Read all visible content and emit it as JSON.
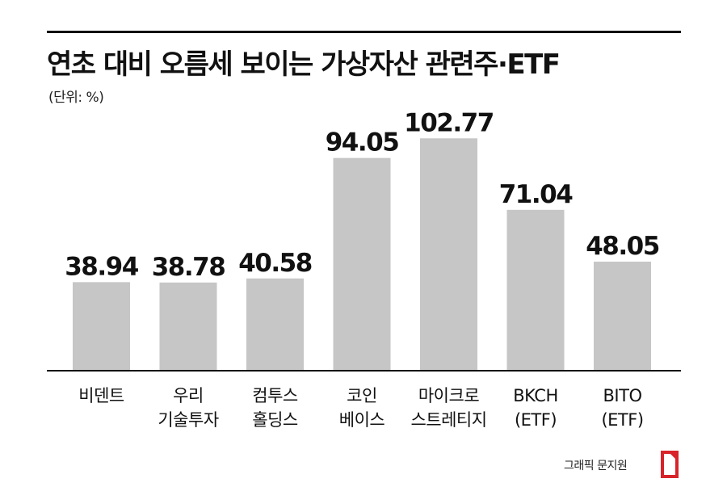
{
  "header": {
    "title": "연초 대비 오름세 보이는 가상자산 관련주·ETF",
    "unit": "(단위: %)"
  },
  "footer": {
    "credit": "그래픽 문지원"
  },
  "colors": {
    "bar": "#c6c6c6",
    "text": "#111111",
    "axis": "#111111",
    "logo": "#d8232a"
  },
  "chart_data": {
    "type": "bar",
    "title": "연초 대비 오름세 보이는 가상자산 관련주·ETF",
    "ylabel": "",
    "xlabel": "",
    "unit": "%",
    "ylim": [
      0,
      110
    ],
    "grid": false,
    "categories": [
      [
        "비덴트"
      ],
      [
        "우리",
        "기술투자"
      ],
      [
        "컴투스",
        "홀딩스"
      ],
      [
        "코인",
        "베이스"
      ],
      [
        "마이크로",
        "스트레티지"
      ],
      [
        "BKCH",
        "(ETF)"
      ],
      [
        "BITO",
        "(ETF)"
      ]
    ],
    "value_labels": [
      "38.94",
      "38.78",
      "40.58",
      "94.05",
      "102.77",
      "71.04",
      "48.05"
    ],
    "values": [
      38.94,
      38.78,
      40.58,
      94.05,
      102.77,
      71.04,
      48.05
    ]
  }
}
